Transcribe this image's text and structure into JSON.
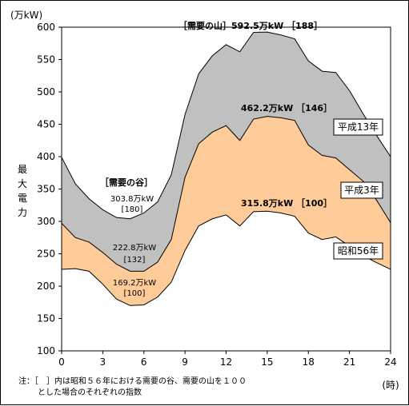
{
  "chart_data": {
    "type": "area",
    "xlabel": "(時)",
    "ylabel": "最大電力",
    "yunit": "(万kW)",
    "xlim": [
      0,
      24
    ],
    "ylim": [
      100,
      600
    ],
    "xticks": [
      0,
      3,
      6,
      9,
      12,
      15,
      18,
      21,
      24
    ],
    "yticks": [
      100,
      150,
      200,
      250,
      300,
      350,
      400,
      450,
      500,
      550,
      600
    ],
    "grid": false,
    "x": [
      0,
      1,
      2,
      3,
      4,
      5,
      6,
      7,
      8,
      9,
      10,
      11,
      12,
      13,
      14,
      15,
      16,
      17,
      18,
      19,
      20,
      21,
      22,
      23,
      24
    ],
    "series": [
      {
        "name": "平成13年",
        "color": "#c0c0c0",
        "values": [
          399,
          358,
          335,
          318,
          306,
          304,
          313,
          330,
          372,
          465,
          528,
          556,
          573,
          562,
          592,
          592.5,
          588,
          582,
          548,
          532,
          530,
          502,
          466,
          432,
          400
        ]
      },
      {
        "name": "平成3年",
        "color": "#ffcc99",
        "values": [
          297,
          275,
          268,
          252,
          234,
          223,
          223,
          237,
          272,
          368,
          420,
          438,
          448,
          425,
          458,
          462.2,
          460,
          456,
          418,
          402,
          398,
          380,
          362,
          332,
          298
        ]
      },
      {
        "name": "昭和56年",
        "color": "#ffffff",
        "values": [
          226,
          227,
          223,
          203,
          180,
          170,
          171,
          183,
          206,
          255,
          293,
          304,
          310,
          293,
          315,
          315.8,
          313,
          308,
          282,
          272,
          276,
          262,
          247,
          236,
          226
        ]
      }
    ],
    "annotations": {
      "peak_label": "［需要の山］",
      "trough_label": "［需要の谷］",
      "h13_peak": "592.5万kW ［188］",
      "h3_peak": "462.2万kW ［146］",
      "s56_peak": "315.8万kW ［100］",
      "h13_trough_value": "303.8万kW",
      "h13_trough_index": "[180]",
      "h3_trough_value": "222.8万kW",
      "h3_trough_index": "[132]",
      "s56_trough_value": "169.2万kW",
      "s56_trough_index": "[100]"
    },
    "legend_placement": "right, labels at line ends"
  },
  "note": {
    "line1": "注：［　］内は昭和５６年における需要の谷、需要の山を１００",
    "line2": "とした場合のそれぞれの指数"
  }
}
